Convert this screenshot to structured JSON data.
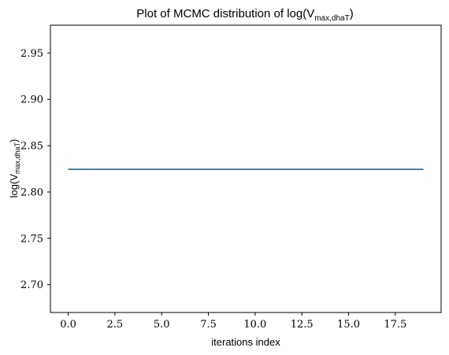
{
  "chart_data": {
    "type": "line",
    "title": "Plot of MCMC distribution of log(V",
    "title_sub": "max,dhaT",
    "title_tail": ")",
    "xlabel": "iterations index",
    "ylabel": "log(V",
    "ylabel_sub": "max,dhaT",
    "ylabel_tail": ")",
    "xlim": [
      -0.95,
      19.95
    ],
    "ylim": [
      2.67,
      2.98
    ],
    "xticks": [
      0.0,
      2.5,
      5.0,
      7.5,
      10.0,
      12.5,
      15.0,
      17.5
    ],
    "xtick_labels": [
      "0.0",
      "2.5",
      "5.0",
      "7.5",
      "10.0",
      "12.5",
      "15.0",
      "17.5"
    ],
    "yticks": [
      2.7,
      2.75,
      2.8,
      2.85,
      2.9,
      2.95
    ],
    "ytick_labels": [
      "2.70",
      "2.75",
      "2.80",
      "2.85",
      "2.90",
      "2.95"
    ],
    "grid": false,
    "series": [
      {
        "color": "#1f77b4",
        "x": [
          0,
          1,
          2,
          3,
          4,
          5,
          6,
          7,
          8,
          9,
          10,
          11,
          12,
          13,
          14,
          15,
          16,
          17,
          18,
          19
        ],
        "y": [
          2.8245,
          2.8245,
          2.8245,
          2.8245,
          2.8245,
          2.8245,
          2.8245,
          2.8245,
          2.8245,
          2.8245,
          2.8245,
          2.8245,
          2.8245,
          2.8245,
          2.8245,
          2.8245,
          2.8245,
          2.8245,
          2.8245,
          2.8245
        ]
      }
    ]
  }
}
